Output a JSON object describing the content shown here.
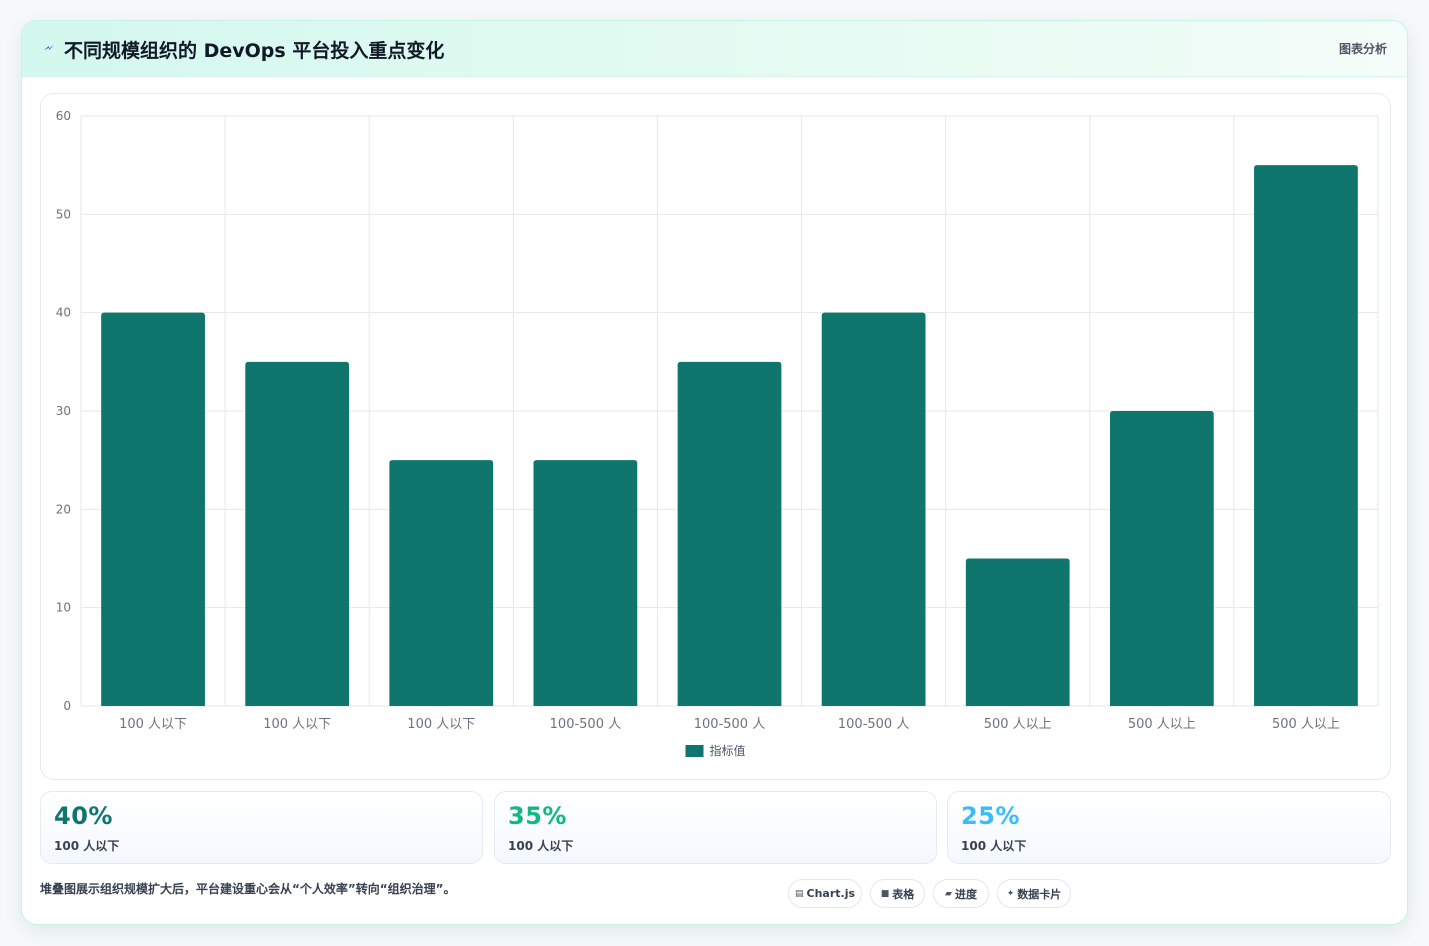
{
  "header": {
    "title": "不同规模组织的 DevOps 平台投入重点变化",
    "tag": "图表分析"
  },
  "chart_data": {
    "type": "bar",
    "categories": [
      "100 人以下",
      "100 人以下",
      "100 人以下",
      "100-500 人",
      "100-500 人",
      "100-500 人",
      "500 人以上",
      "500 人以上",
      "500 人以上"
    ],
    "series": [
      {
        "name": "指标值",
        "values": [
          40,
          35,
          25,
          25,
          35,
          40,
          15,
          30,
          55
        ]
      }
    ],
    "ylim": [
      0,
      60
    ],
    "yticks": [
      0,
      10,
      20,
      30,
      40,
      50,
      60
    ],
    "grid": true,
    "legend": "bottom",
    "colors": {
      "bar": "#0f766e",
      "grid": "#e5e7eb",
      "axis_text": "#6b7280"
    }
  },
  "stats": [
    {
      "value": "40%",
      "label": "100 人以下",
      "color": "#0f766e"
    },
    {
      "value": "35%",
      "label": "100 人以下",
      "color": "#10b981"
    },
    {
      "value": "25%",
      "label": "100 人以下",
      "color": "#38bdf8"
    }
  ],
  "footnote": "堆叠图展示组织规模扩大后，平台建设重心会从“个人效率”转向“组织治理”。",
  "pills": [
    {
      "icon": "▤",
      "label": "Chart.js",
      "icon_name": "chart-icon"
    },
    {
      "icon": "■",
      "label": "表格",
      "icon_name": "table-icon"
    },
    {
      "icon": "▰",
      "label": "进度",
      "icon_name": "progress-icon"
    },
    {
      "icon": "✦",
      "label": "数据卡片",
      "icon_name": "sparkle-icon"
    }
  ]
}
